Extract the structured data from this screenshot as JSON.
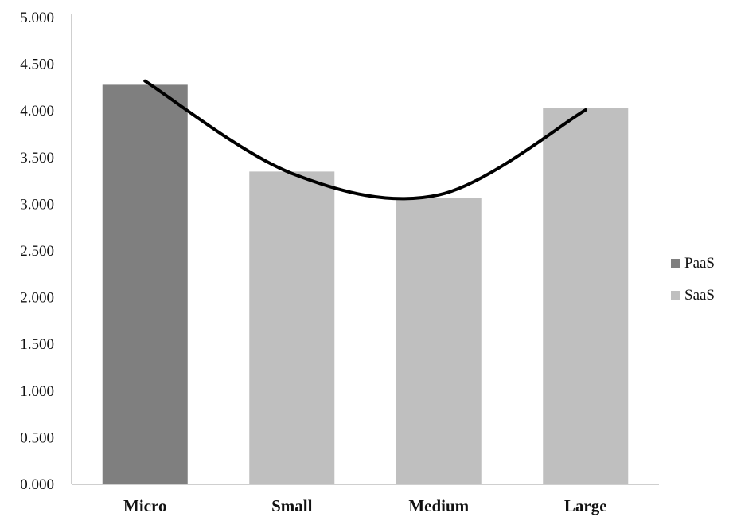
{
  "chart_data": {
    "type": "bar",
    "categories": [
      "Micro",
      "Small",
      "Medium",
      "Large"
    ],
    "series": [
      {
        "name": "PaaS",
        "values": [
          4.28,
          null,
          null,
          null
        ],
        "color": "#7f7f7f"
      },
      {
        "name": "SaaS",
        "values": [
          null,
          3.35,
          3.07,
          4.03
        ],
        "color": "#bfbfbf"
      }
    ],
    "trendline": {
      "type": "polynomial",
      "color": "#000000",
      "points": [
        {
          "x": "Micro",
          "y": 4.32
        },
        {
          "x": "Small",
          "y": 3.33
        },
        {
          "x": "Medium",
          "y": 3.1
        },
        {
          "x": "Large",
          "y": 4.01
        }
      ]
    },
    "yticks": [
      "0.000",
      "0.500",
      "1.000",
      "1.500",
      "2.000",
      "2.500",
      "3.000",
      "3.500",
      "4.000",
      "4.500",
      "5.000"
    ],
    "ylim": [
      0,
      5
    ],
    "title": "",
    "xlabel": "",
    "ylabel": "",
    "grid": false,
    "legend_position": "right"
  }
}
